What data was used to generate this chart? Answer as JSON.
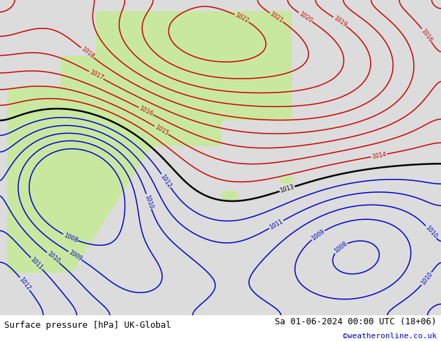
{
  "title_left": "Surface pressure [hPa] UK-Global",
  "title_right": "Sa 01-06-2024 00:00 UTC (18+06)",
  "watermark": "©weatheronline.co.uk",
  "sea_color": "#dcdcdc",
  "land_color": "#c8e8a0",
  "contour_color_red": "#cc0000",
  "contour_color_blue": "#0000cc",
  "contour_color_black": "#000000",
  "figsize": [
    6.34,
    4.9
  ],
  "dpi": 100,
  "font_size_bottom": 9
}
